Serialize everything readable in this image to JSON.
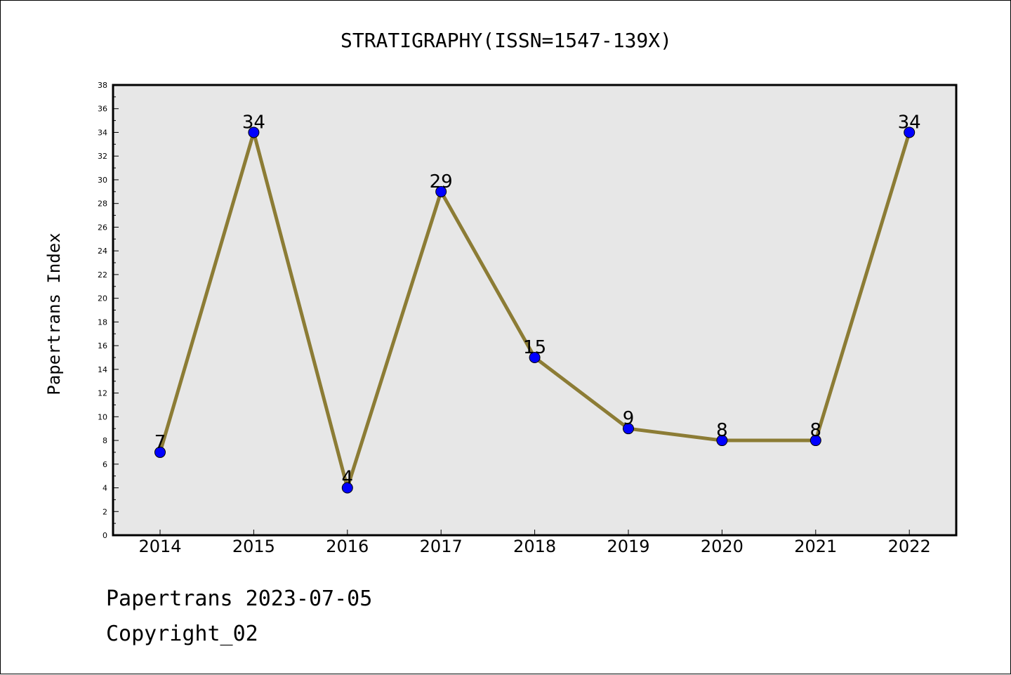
{
  "chart_data": {
    "type": "line",
    "title": "STRATIGRAPHY(ISSN=1547-139X)",
    "xlabel": "",
    "ylabel": "Papertrans Index",
    "categories": [
      "2014",
      "2015",
      "2016",
      "2017",
      "2018",
      "2019",
      "2020",
      "2021",
      "2022"
    ],
    "series": [
      {
        "values": [
          7,
          34,
          4,
          29,
          15,
          9,
          8,
          8,
          34
        ]
      }
    ],
    "data_labels": [
      "7",
      "34",
      "4",
      "29",
      "15",
      "9",
      "8",
      "8",
      "34"
    ],
    "ylim": [
      0,
      38
    ],
    "yticks": [
      "0",
      "2",
      "4",
      "6",
      "8",
      "10",
      "12",
      "14",
      "16",
      "18",
      "20",
      "22",
      "24",
      "26",
      "28",
      "30",
      "32",
      "34",
      "36",
      "38"
    ],
    "grid": false,
    "legend": "none",
    "colors": {
      "plot_background": "#e7e7e7",
      "line": "#8c7c35",
      "marker": "#0000ff"
    }
  },
  "footer": {
    "line1": "Papertrans 2023-07-05",
    "line2": "Copyright_02"
  }
}
